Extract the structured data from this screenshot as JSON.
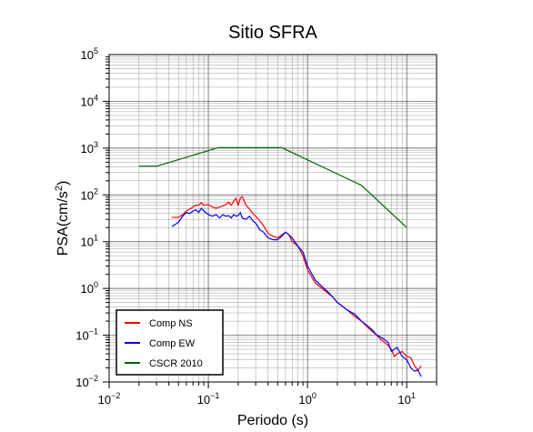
{
  "chart_data": {
    "type": "line",
    "title": "Sitio SFRA",
    "xlabel": "Periodo (s)",
    "ylabel": "PSA(cm/s2)",
    "x_scale": "log",
    "y_scale": "log",
    "xlim": [
      0.01,
      20
    ],
    "ylim": [
      0.01,
      100000
    ],
    "grid": true,
    "legend_position": "bottom-left",
    "x_ticks": [
      "10-2",
      "10-1",
      "100",
      "101"
    ],
    "y_ticks": [
      "10-2",
      "10-1",
      "100",
      "101",
      "102",
      "103",
      "104",
      "105"
    ],
    "series": [
      {
        "name": "Comp NS",
        "color": "#ff0000",
        "x": [
          0.043,
          0.05,
          0.055,
          0.06,
          0.065,
          0.07,
          0.075,
          0.08,
          0.085,
          0.09,
          0.1,
          0.11,
          0.12,
          0.13,
          0.14,
          0.15,
          0.16,
          0.17,
          0.18,
          0.19,
          0.2,
          0.21,
          0.22,
          0.24,
          0.26,
          0.28,
          0.3,
          0.33,
          0.36,
          0.4,
          0.45,
          0.5,
          0.55,
          0.6,
          0.65,
          0.7,
          0.8,
          0.9,
          1.0,
          1.2,
          1.4,
          1.6,
          1.8,
          2.0,
          2.5,
          3.0,
          3.5,
          4.0,
          4.5,
          5.0,
          5.5,
          6.0,
          6.5,
          7.0,
          7.5,
          8.0,
          9.0,
          10.0,
          11.0,
          12.0,
          13.0,
          14.0
        ],
        "y": [
          33,
          33,
          38,
          45,
          50,
          55,
          60,
          60,
          68,
          60,
          62,
          55,
          52,
          55,
          58,
          62,
          70,
          60,
          72,
          85,
          60,
          85,
          92,
          60,
          50,
          40,
          35,
          28,
          22,
          15,
          13,
          12,
          14,
          16,
          14,
          10,
          8,
          5,
          2.5,
          1.3,
          1.0,
          0.8,
          0.65,
          0.5,
          0.35,
          0.25,
          0.2,
          0.15,
          0.12,
          0.1,
          0.08,
          0.07,
          0.06,
          0.05,
          0.035,
          0.04,
          0.045,
          0.035,
          0.033,
          0.022,
          0.018,
          0.022
        ]
      },
      {
        "name": "Comp EW",
        "color": "#0000ff",
        "x": [
          0.043,
          0.05,
          0.055,
          0.06,
          0.065,
          0.07,
          0.075,
          0.08,
          0.085,
          0.09,
          0.1,
          0.11,
          0.12,
          0.13,
          0.14,
          0.15,
          0.16,
          0.17,
          0.18,
          0.19,
          0.2,
          0.21,
          0.22,
          0.24,
          0.26,
          0.28,
          0.3,
          0.33,
          0.36,
          0.4,
          0.45,
          0.5,
          0.55,
          0.6,
          0.65,
          0.7,
          0.8,
          0.9,
          1.0,
          1.2,
          1.4,
          1.6,
          1.8,
          2.0,
          2.5,
          3.0,
          3.5,
          4.0,
          4.5,
          5.0,
          5.5,
          6.0,
          6.5,
          7.0,
          7.5,
          8.0,
          9.0,
          10.0,
          11.0,
          12.0,
          13.0,
          14.0
        ],
        "y": [
          21,
          26,
          35,
          42,
          40,
          45,
          48,
          42,
          52,
          45,
          38,
          35,
          38,
          32,
          38,
          35,
          36,
          32,
          38,
          35,
          36,
          42,
          32,
          30,
          35,
          28,
          25,
          18,
          16,
          12,
          11,
          11,
          13,
          16,
          14,
          12,
          8,
          6,
          3,
          1.5,
          1.1,
          0.85,
          0.65,
          0.5,
          0.35,
          0.28,
          0.2,
          0.16,
          0.13,
          0.1,
          0.09,
          0.08,
          0.07,
          0.045,
          0.05,
          0.055,
          0.035,
          0.03,
          0.02,
          0.017,
          0.018,
          0.013
        ]
      },
      {
        "name": "CSCR 2010",
        "color": "#006400",
        "x": [
          0.02,
          0.03,
          0.125,
          0.55,
          3.5,
          10.0
        ],
        "y": [
          410,
          410,
          1020,
          1020,
          160,
          20
        ]
      }
    ]
  }
}
